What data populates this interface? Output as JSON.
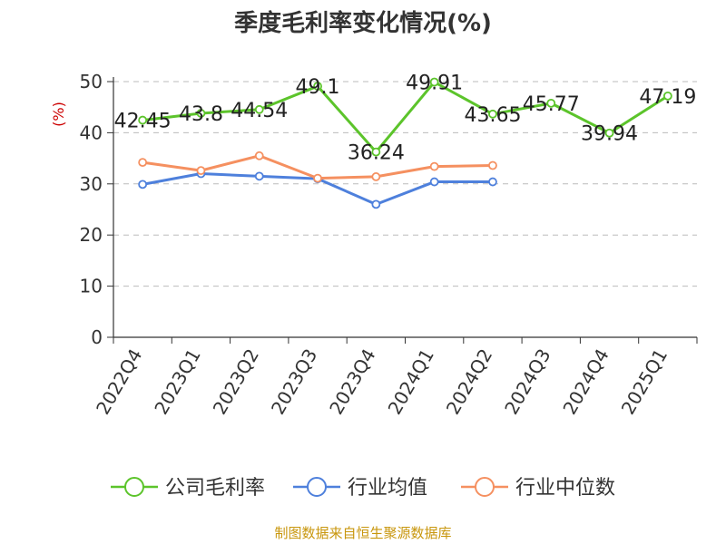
{
  "chart_data": {
    "type": "line",
    "title": "季度毛利率变化情况(%)",
    "ylabel": "(%)",
    "xlabel": "",
    "ylim": [
      0,
      50
    ],
    "yticks": [
      0,
      10,
      20,
      30,
      40,
      50
    ],
    "grid": true,
    "legend_position": "bottom",
    "categories": [
      "2022Q4",
      "2023Q1",
      "2023Q2",
      "2023Q3",
      "2023Q4",
      "2024Q1",
      "2024Q2",
      "2024Q3",
      "2024Q4",
      "2025Q1"
    ],
    "series": [
      {
        "name": "公司毛利率",
        "color": "#5cc42b",
        "show_labels": true,
        "labels": [
          "42.45",
          "43.8",
          "44.54",
          "49.1",
          "36.24",
          "49.91",
          "43.65",
          "45.77",
          "39.94",
          "47.19"
        ],
        "values": [
          42.45,
          43.8,
          44.54,
          49.1,
          36.24,
          49.91,
          43.65,
          45.77,
          39.94,
          47.19
        ]
      },
      {
        "name": "行业均值",
        "color": "#4e80dc",
        "show_labels": false,
        "values": [
          29.9,
          32.0,
          31.5,
          31.0,
          26.0,
          30.4,
          30.4,
          null,
          null,
          null
        ]
      },
      {
        "name": "行业中位数",
        "color": "#f59060",
        "show_labels": false,
        "values": [
          34.2,
          32.6,
          35.5,
          31.1,
          31.4,
          33.4,
          33.6,
          null,
          null,
          null
        ]
      }
    ]
  },
  "source": "制图数据来自恒生聚源数据库"
}
